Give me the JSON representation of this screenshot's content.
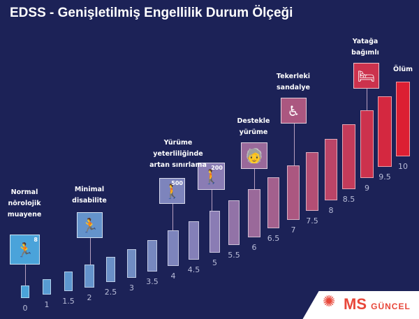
{
  "title": "EDSS - Genişletilmiş Engellilik Durum Ölçeği",
  "colors": {
    "background": "#1c2257",
    "start": "#4aa3da",
    "mid": "#8a7cb4",
    "end": "#dc1f33"
  },
  "chart_data": {
    "type": "bar",
    "categories": [
      "0",
      "1",
      "1.5",
      "2",
      "2.5",
      "3",
      "3.5",
      "4",
      "4.5",
      "5",
      "5.5",
      "6",
      "6.5",
      "7",
      "7.5",
      "8",
      "8.5",
      "9",
      "9.5",
      "10"
    ],
    "values": [
      0,
      1,
      1.5,
      2,
      2.5,
      3,
      3.5,
      4,
      4.5,
      5,
      5.5,
      6,
      6.5,
      7,
      7.5,
      8,
      8.5,
      9,
      9.5,
      10
    ]
  },
  "milestones": [
    {
      "score": "0",
      "caption": "Normal\nnörolojik\nmuayene",
      "icon": "running-person-icon",
      "badge": "8"
    },
    {
      "score": "2",
      "caption": "Minimal\ndisabilite",
      "icon": "running-person-icon",
      "badge": ""
    },
    {
      "score": "4",
      "caption": "",
      "icon": "walking-person-icon",
      "badge": "500"
    },
    {
      "score": "5",
      "caption": "Yürüme\nyeterliliğinde\nartan sınırlama",
      "icon": "walking-person-icon",
      "badge": "200"
    },
    {
      "score": "6",
      "caption": "Destekle\nyürüme",
      "icon": "cane-walker-icon",
      "badge": ""
    },
    {
      "score": "7",
      "caption": "Tekerleki\nsandalye",
      "icon": "wheelchair-icon",
      "badge": ""
    },
    {
      "score": "9",
      "caption": "Yatağa\nbağımlı",
      "icon": "bed-icon",
      "badge": ""
    },
    {
      "score": "10",
      "caption": "Ölüm",
      "icon": "",
      "badge": ""
    }
  ],
  "logo": {
    "ms": "MS",
    "guncel": "GÜNCEL"
  }
}
